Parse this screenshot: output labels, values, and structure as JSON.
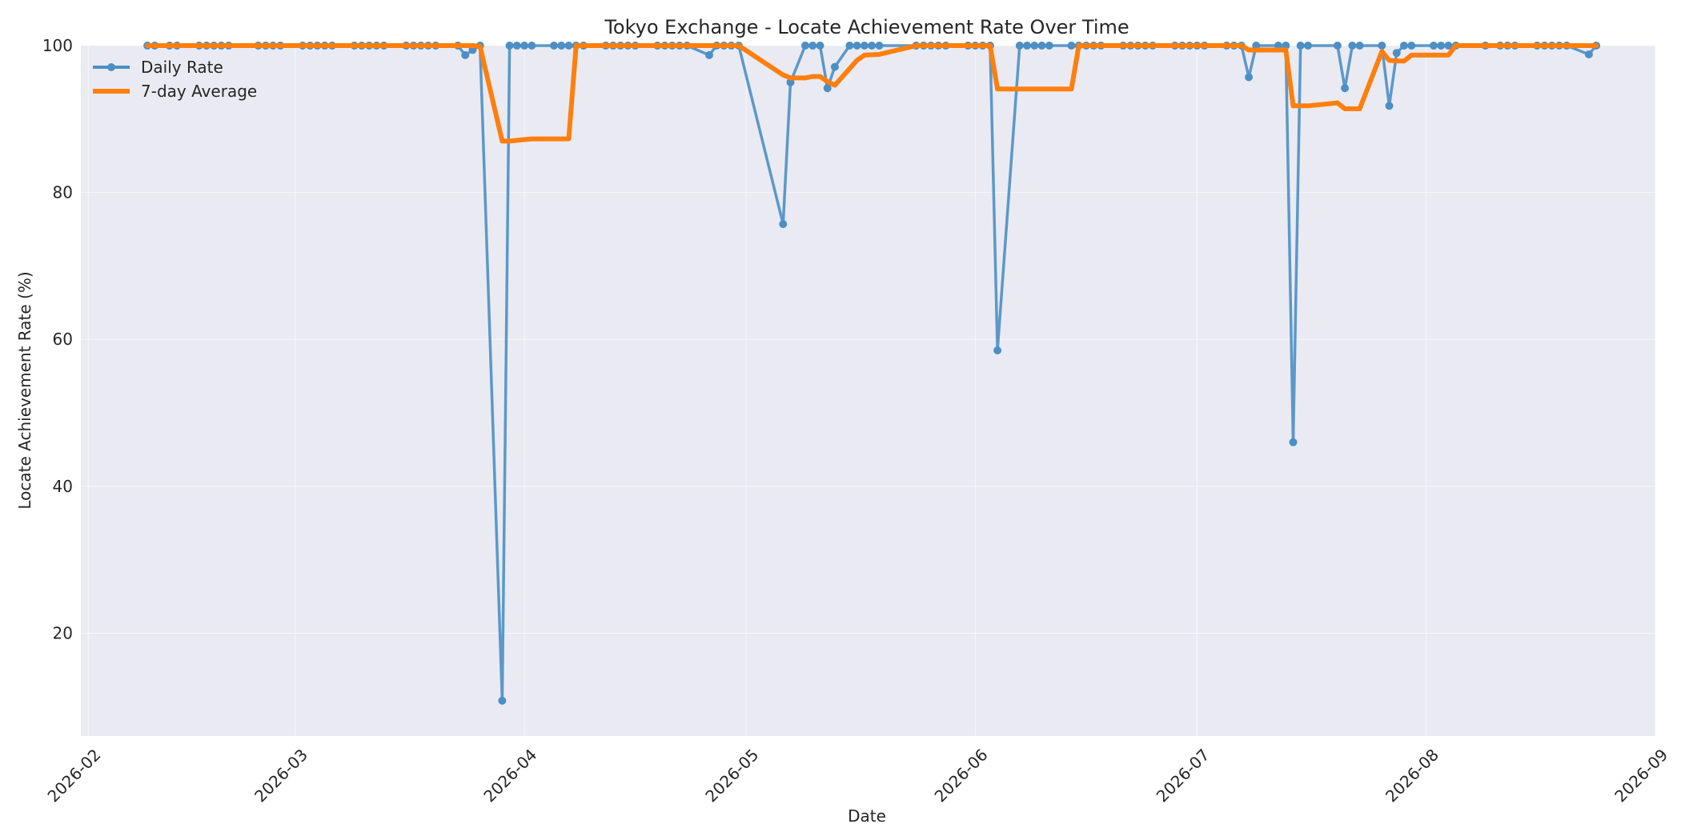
{
  "chart_data": {
    "type": "line",
    "title": "Tokyo Exchange - Locate Achievement Rate Over Time",
    "xlabel": "Date",
    "ylabel": "Locate Achievement Rate (%)",
    "xlim": [
      "2026-01-31",
      "2026-09-01"
    ],
    "ylim": [
      6,
      100
    ],
    "x_ticks": [
      "2026-02",
      "2026-03",
      "2026-04",
      "2026-05",
      "2026-06",
      "2026-07",
      "2026-08",
      "2026-09"
    ],
    "x_tick_dates": [
      "2026-02-01",
      "2026-03-01",
      "2026-04-01",
      "2026-05-01",
      "2026-06-01",
      "2026-07-01",
      "2026-08-01",
      "2026-09-01"
    ],
    "y_ticks": [
      20,
      40,
      60,
      80,
      100
    ],
    "grid": true,
    "legend": "upper-left",
    "series": [
      {
        "name": "Daily Rate",
        "color": "#4c8fc4",
        "marker": "circle",
        "points": [
          [
            "2026-02-09",
            100
          ],
          [
            "2026-02-10",
            100
          ],
          [
            "2026-02-12",
            100
          ],
          [
            "2026-02-13",
            100
          ],
          [
            "2026-02-16",
            100
          ],
          [
            "2026-02-17",
            100
          ],
          [
            "2026-02-18",
            100
          ],
          [
            "2026-02-19",
            100
          ],
          [
            "2026-02-20",
            100
          ],
          [
            "2026-02-24",
            100
          ],
          [
            "2026-02-25",
            100
          ],
          [
            "2026-02-26",
            100
          ],
          [
            "2026-02-27",
            100
          ],
          [
            "2026-03-02",
            100
          ],
          [
            "2026-03-03",
            100
          ],
          [
            "2026-03-04",
            100
          ],
          [
            "2026-03-05",
            100
          ],
          [
            "2026-03-06",
            100
          ],
          [
            "2026-03-09",
            100
          ],
          [
            "2026-03-10",
            100
          ],
          [
            "2026-03-11",
            100
          ],
          [
            "2026-03-12",
            100
          ],
          [
            "2026-03-13",
            100
          ],
          [
            "2026-03-16",
            100
          ],
          [
            "2026-03-17",
            100
          ],
          [
            "2026-03-18",
            100
          ],
          [
            "2026-03-19",
            100
          ],
          [
            "2026-03-20",
            100
          ],
          [
            "2026-03-23",
            100
          ],
          [
            "2026-03-24",
            98.7
          ],
          [
            "2026-03-25",
            99.4
          ],
          [
            "2026-03-26",
            100
          ],
          [
            "2026-03-29",
            10.8
          ],
          [
            "2026-03-30",
            100
          ],
          [
            "2026-03-31",
            100
          ],
          [
            "2026-04-01",
            100
          ],
          [
            "2026-04-02",
            100
          ],
          [
            "2026-04-05",
            100
          ],
          [
            "2026-04-06",
            100
          ],
          [
            "2026-04-07",
            100
          ],
          [
            "2026-04-08",
            100
          ],
          [
            "2026-04-09",
            100
          ],
          [
            "2026-04-12",
            100
          ],
          [
            "2026-04-13",
            100
          ],
          [
            "2026-04-14",
            100
          ],
          [
            "2026-04-15",
            100
          ],
          [
            "2026-04-16",
            100
          ],
          [
            "2026-04-19",
            100
          ],
          [
            "2026-04-20",
            100
          ],
          [
            "2026-04-21",
            100
          ],
          [
            "2026-04-22",
            100
          ],
          [
            "2026-04-23",
            100
          ],
          [
            "2026-04-26",
            98.7
          ],
          [
            "2026-04-27",
            100
          ],
          [
            "2026-04-28",
            100
          ],
          [
            "2026-04-29",
            100
          ],
          [
            "2026-04-30",
            100
          ],
          [
            "2026-05-06",
            75.7
          ],
          [
            "2026-05-07",
            95.0
          ],
          [
            "2026-05-09",
            100
          ],
          [
            "2026-05-10",
            100
          ],
          [
            "2026-05-11",
            100
          ],
          [
            "2026-05-12",
            94.2
          ],
          [
            "2026-05-13",
            97.1
          ],
          [
            "2026-05-15",
            100
          ],
          [
            "2026-05-16",
            100
          ],
          [
            "2026-05-17",
            100
          ],
          [
            "2026-05-18",
            100
          ],
          [
            "2026-05-19",
            100
          ],
          [
            "2026-05-24",
            100
          ],
          [
            "2026-05-25",
            100
          ],
          [
            "2026-05-26",
            100
          ],
          [
            "2026-05-27",
            100
          ],
          [
            "2026-05-28",
            100
          ],
          [
            "2026-05-31",
            100
          ],
          [
            "2026-06-01",
            100
          ],
          [
            "2026-06-02",
            100
          ],
          [
            "2026-06-03",
            100
          ],
          [
            "2026-06-04",
            58.5
          ],
          [
            "2026-06-07",
            100
          ],
          [
            "2026-06-08",
            100
          ],
          [
            "2026-06-09",
            100
          ],
          [
            "2026-06-10",
            100
          ],
          [
            "2026-06-11",
            100
          ],
          [
            "2026-06-14",
            100
          ],
          [
            "2026-06-15",
            100
          ],
          [
            "2026-06-16",
            100
          ],
          [
            "2026-06-17",
            100
          ],
          [
            "2026-06-18",
            100
          ],
          [
            "2026-06-21",
            100
          ],
          [
            "2026-06-22",
            100
          ],
          [
            "2026-06-23",
            100
          ],
          [
            "2026-06-24",
            100
          ],
          [
            "2026-06-25",
            100
          ],
          [
            "2026-06-28",
            100
          ],
          [
            "2026-06-29",
            100
          ],
          [
            "2026-06-30",
            100
          ],
          [
            "2026-07-01",
            100
          ],
          [
            "2026-07-02",
            100
          ],
          [
            "2026-07-05",
            100
          ],
          [
            "2026-07-06",
            100
          ],
          [
            "2026-07-07",
            100
          ],
          [
            "2026-07-08",
            95.7
          ],
          [
            "2026-07-09",
            100
          ],
          [
            "2026-07-12",
            100
          ],
          [
            "2026-07-13",
            100
          ],
          [
            "2026-07-14",
            46.0
          ],
          [
            "2026-07-15",
            100
          ],
          [
            "2026-07-16",
            100
          ],
          [
            "2026-07-20",
            100
          ],
          [
            "2026-07-21",
            94.2
          ],
          [
            "2026-07-22",
            100
          ],
          [
            "2026-07-23",
            100
          ],
          [
            "2026-07-26",
            100
          ],
          [
            "2026-07-27",
            91.8
          ],
          [
            "2026-07-28",
            99.0
          ],
          [
            "2026-07-29",
            100
          ],
          [
            "2026-07-30",
            100
          ],
          [
            "2026-08-02",
            100
          ],
          [
            "2026-08-03",
            100
          ],
          [
            "2026-08-04",
            100
          ],
          [
            "2026-08-05",
            100
          ],
          [
            "2026-08-09",
            100
          ],
          [
            "2026-08-11",
            100
          ],
          [
            "2026-08-12",
            100
          ],
          [
            "2026-08-13",
            100
          ],
          [
            "2026-08-16",
            100
          ],
          [
            "2026-08-17",
            100
          ],
          [
            "2026-08-18",
            100
          ],
          [
            "2026-08-19",
            100
          ],
          [
            "2026-08-20",
            100
          ],
          [
            "2026-08-23",
            98.8
          ],
          [
            "2026-08-24",
            100
          ]
        ]
      },
      {
        "name": "7-day Average",
        "color": "#ff7f0e",
        "marker": "none",
        "points": [
          [
            "2026-02-09",
            100
          ],
          [
            "2026-03-25",
            100
          ],
          [
            "2026-03-26",
            99.9
          ],
          [
            "2026-03-29",
            87.0
          ],
          [
            "2026-03-30",
            87.0
          ],
          [
            "2026-03-31",
            87.1
          ],
          [
            "2026-04-02",
            87.3
          ],
          [
            "2026-04-07",
            87.3
          ],
          [
            "2026-04-08",
            100
          ],
          [
            "2026-04-30",
            100
          ],
          [
            "2026-05-06",
            96.0
          ],
          [
            "2026-05-07",
            95.6
          ],
          [
            "2026-05-09",
            95.6
          ],
          [
            "2026-05-10",
            95.8
          ],
          [
            "2026-05-11",
            95.8
          ],
          [
            "2026-05-12",
            95.1
          ],
          [
            "2026-05-13",
            94.6
          ],
          [
            "2026-05-16",
            98.0
          ],
          [
            "2026-05-17",
            98.7
          ],
          [
            "2026-05-19",
            98.8
          ],
          [
            "2026-05-24",
            100
          ],
          [
            "2026-06-03",
            100
          ],
          [
            "2026-06-04",
            94.1
          ],
          [
            "2026-06-14",
            94.1
          ],
          [
            "2026-06-15",
            100
          ],
          [
            "2026-07-07",
            100
          ],
          [
            "2026-07-08",
            99.4
          ],
          [
            "2026-07-13",
            99.4
          ],
          [
            "2026-07-14",
            91.8
          ],
          [
            "2026-07-16",
            91.8
          ],
          [
            "2026-07-20",
            92.2
          ],
          [
            "2026-07-21",
            91.4
          ],
          [
            "2026-07-23",
            91.4
          ],
          [
            "2026-07-26",
            99.2
          ],
          [
            "2026-07-27",
            98.0
          ],
          [
            "2026-07-28",
            97.9
          ],
          [
            "2026-07-29",
            97.9
          ],
          [
            "2026-07-30",
            98.7
          ],
          [
            "2026-08-04",
            98.7
          ],
          [
            "2026-08-05",
            100
          ],
          [
            "2026-08-24",
            100
          ]
        ]
      }
    ]
  }
}
